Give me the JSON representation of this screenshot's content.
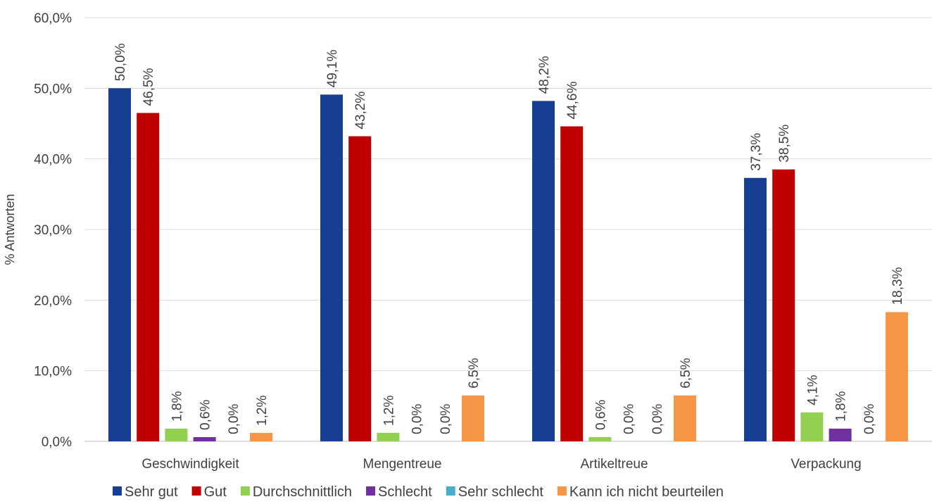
{
  "chart_data": {
    "type": "bar",
    "title": "",
    "xlabel": "",
    "ylabel": "% Antworten",
    "ylim": [
      0,
      60
    ],
    "yticks": [
      "0,0%",
      "10,0%",
      "20,0%",
      "30,0%",
      "40,0%",
      "50,0%",
      "60,0%"
    ],
    "grid": true,
    "legend_position": "bottom",
    "categories": [
      "Geschwindigkeit",
      "Mengentreue",
      "Artikeltreue",
      "Verpackung"
    ],
    "series": [
      {
        "name": "Sehr gut",
        "color": "#163E93",
        "values": [
          50.0,
          49.1,
          48.2,
          37.3
        ],
        "labels": [
          "50,0%",
          "49,1%",
          "48,2%",
          "37,3%"
        ]
      },
      {
        "name": "Gut",
        "color": "#C00000",
        "values": [
          46.5,
          43.2,
          44.6,
          38.5
        ],
        "labels": [
          "46,5%",
          "43,2%",
          "44,6%",
          "38,5%"
        ]
      },
      {
        "name": "Durchschnittlich",
        "color": "#92D050",
        "values": [
          1.8,
          1.2,
          0.6,
          4.1
        ],
        "labels": [
          "1,8%",
          "1,2%",
          "0,6%",
          "4,1%"
        ]
      },
      {
        "name": "Schlecht",
        "color": "#7030A0",
        "values": [
          0.6,
          0.0,
          0.0,
          1.8
        ],
        "labels": [
          "0,6%",
          "0,0%",
          "0,0%",
          "1,8%"
        ]
      },
      {
        "name": "Sehr schlecht",
        "color": "#4BACC6",
        "values": [
          0.0,
          0.0,
          0.0,
          0.0
        ],
        "labels": [
          "0,0%",
          "0,0%",
          "0,0%",
          "0,0%"
        ]
      },
      {
        "name": "Kann ich nicht beurteilen",
        "color": "#F79646",
        "values": [
          1.2,
          6.5,
          6.5,
          18.3
        ],
        "labels": [
          "1,2%",
          "6,5%",
          "6,5%",
          "18,3%"
        ]
      }
    ]
  }
}
